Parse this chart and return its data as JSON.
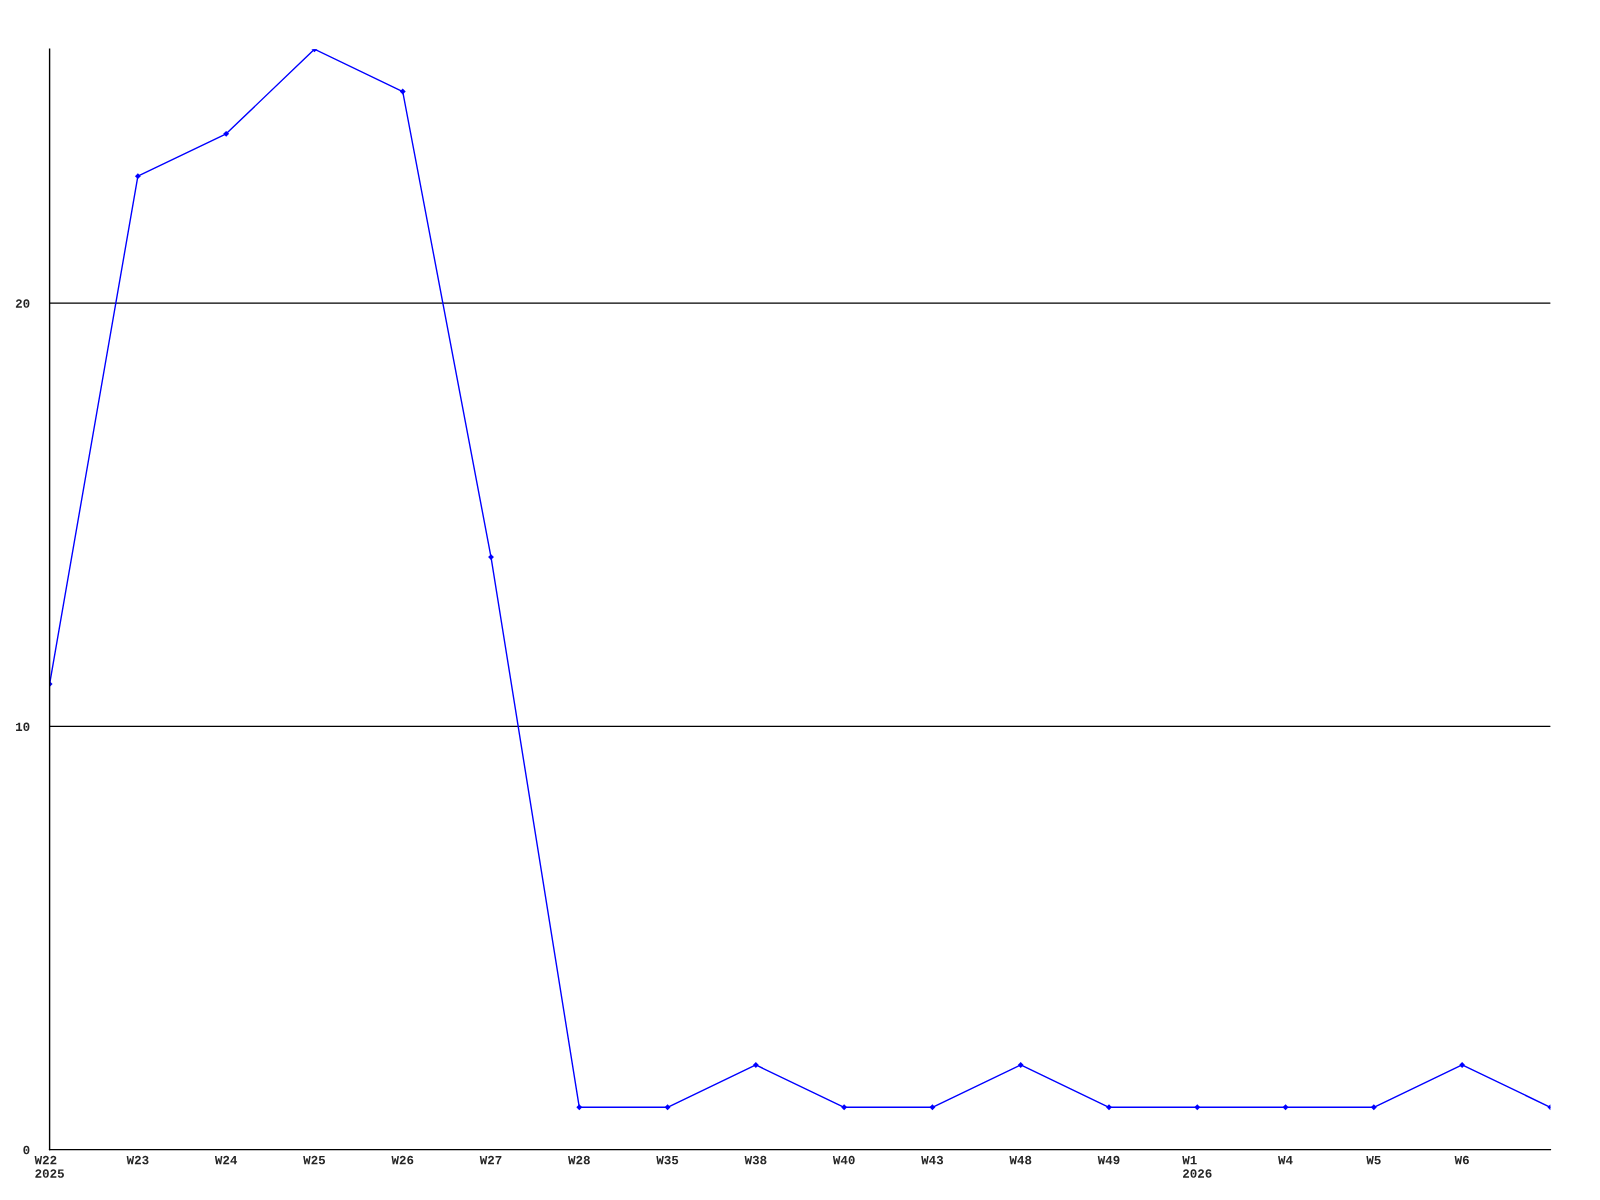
{
  "chart_data": {
    "type": "line",
    "categories": [
      "W22\n2025",
      "W23",
      "W24",
      "W25",
      "W26",
      "W27",
      "W28",
      "W35",
      "W38",
      "W40",
      "W43",
      "W48",
      "W49",
      "W1\n2026",
      "W4",
      "W5",
      "W6",
      null
    ],
    "series": [
      {
        "color": "#0000ff",
        "values": [
          11,
          23,
          24,
          26,
          25,
          14,
          1,
          1,
          2,
          1,
          1,
          2,
          1,
          1,
          1,
          1,
          2,
          1
        ]
      }
    ],
    "ylim": [
      0,
      26
    ],
    "yticks": [
      0,
      10,
      20
    ],
    "grid": "y",
    "marker": "diamond",
    "line_style": "solid"
  }
}
